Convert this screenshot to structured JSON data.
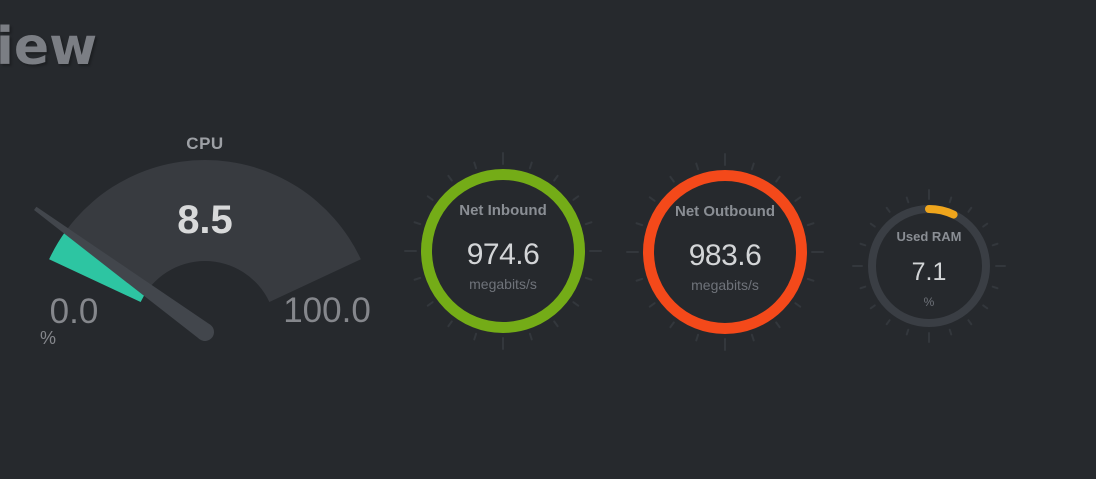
{
  "page": {
    "heading_fragment": "iew"
  },
  "colors": {
    "background": "#26292d",
    "gauge_fan": "#383b40",
    "gauge_needle": "#42464c",
    "cpu_fill": "#2dc5a2",
    "net_inbound_ring": "#74ac17",
    "net_outbound_ring": "#f4491a",
    "used_ram_ring": "#efa51c",
    "used_ram_track": "#3a3e44",
    "tick": "#33373c"
  },
  "panels": {
    "cpu": {
      "title": "CPU",
      "value": "8.5",
      "value_num": 8.5,
      "min": 0,
      "max": 100,
      "min_label": "0.0",
      "max_label": "100.0",
      "unit": "%",
      "fill_color": "#2dc5a2"
    },
    "net_inbound": {
      "title": "Net Inbound",
      "value": "974.6",
      "unit": "megabits/s",
      "ring_color": "#74ac17"
    },
    "net_outbound": {
      "title": "Net Outbound",
      "value": "983.6",
      "unit": "megabits/s",
      "ring_color": "#f4491a"
    },
    "used_ram": {
      "title": "Used RAM",
      "value": "7.1",
      "value_num": 7.1,
      "max": 100,
      "unit": "%",
      "ring_color": "#efa51c",
      "track_color": "#3a3e44"
    }
  },
  "chart_data": [
    {
      "type": "gauge",
      "title": "CPU",
      "value": 8.5,
      "min": 0,
      "max": 100,
      "unit": "%"
    },
    {
      "type": "gauge",
      "title": "Net Inbound",
      "value": 974.6,
      "unit": "megabits/s"
    },
    {
      "type": "gauge",
      "title": "Net Outbound",
      "value": 983.6,
      "unit": "megabits/s"
    },
    {
      "type": "gauge",
      "title": "Used RAM",
      "value": 7.1,
      "max": 100,
      "unit": "%"
    }
  ]
}
